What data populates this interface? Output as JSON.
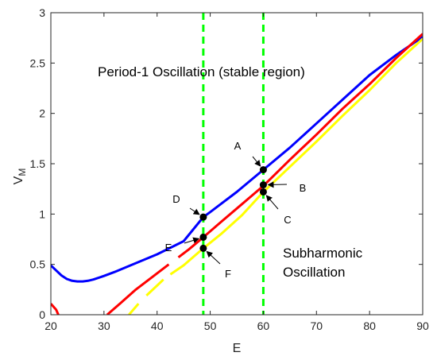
{
  "colors": {
    "blue": "#0000ff",
    "red": "#ff0000",
    "yellow": "#ffff00",
    "green": "#00ff00",
    "axis": "#262626"
  },
  "chart_data": {
    "type": "line",
    "title": "",
    "xlabel": "E",
    "ylabel": "V",
    "ylabel_sub": "M",
    "xlim": [
      20,
      90
    ],
    "ylim": [
      0,
      3
    ],
    "x_ticks": [
      "20",
      "30",
      "40",
      "50",
      "60",
      "70",
      "80",
      "90"
    ],
    "y_ticks": [
      "0",
      "0.5",
      "1",
      "1.5",
      "2",
      "2.5",
      "3"
    ],
    "grid": false,
    "series": [
      {
        "color": "blue",
        "style": "solid",
        "points": [
          [
            20,
            0.49
          ],
          [
            21,
            0.44
          ],
          [
            22,
            0.39
          ],
          [
            23,
            0.355
          ],
          [
            24,
            0.337
          ],
          [
            25,
            0.331
          ],
          [
            26,
            0.331
          ],
          [
            27,
            0.337
          ],
          [
            28,
            0.35
          ],
          [
            30,
            0.385
          ],
          [
            32,
            0.425
          ],
          [
            35,
            0.49
          ],
          [
            40,
            0.6
          ],
          [
            45,
            0.73
          ],
          [
            48.7,
            0.97
          ],
          [
            50,
            1.02
          ],
          [
            55,
            1.22
          ],
          [
            60,
            1.44
          ],
          [
            65,
            1.66
          ],
          [
            70,
            1.9
          ],
          [
            75,
            2.14
          ],
          [
            80,
            2.38
          ],
          [
            85,
            2.58
          ],
          [
            90,
            2.76
          ]
        ]
      },
      {
        "color": "red",
        "style": "segments",
        "segments": [
          [
            [
              20,
              0.11
            ],
            [
              21,
              0.05
            ],
            [
              21.4,
              0.0
            ]
          ],
          [
            [
              30.6,
              0.0
            ],
            [
              33,
              0.11
            ],
            [
              36,
              0.25
            ],
            [
              39,
              0.37
            ],
            [
              42.2,
              0.5
            ]
          ],
          [
            [
              44,
              0.57
            ],
            [
              46,
              0.65
            ],
            [
              48.7,
              0.77
            ],
            [
              52,
              0.92
            ],
            [
              56,
              1.1
            ],
            [
              60,
              1.28
            ],
            [
              65,
              1.54
            ],
            [
              70,
              1.79
            ],
            [
              75,
              2.05
            ],
            [
              80,
              2.29
            ],
            [
              85,
              2.55
            ],
            [
              90,
              2.79
            ]
          ]
        ]
      },
      {
        "color": "yellow",
        "style": "segments",
        "segments": [
          [
            [
              34.7,
              0.0
            ],
            [
              36.5,
              0.11
            ]
          ],
          [
            [
              38,
              0.19
            ],
            [
              40.2,
              0.3
            ],
            [
              41.2,
              0.35
            ]
          ],
          [
            [
              42.5,
              0.4
            ],
            [
              45,
              0.49
            ],
            [
              48.7,
              0.66
            ],
            [
              52,
              0.8
            ],
            [
              56,
              0.99
            ],
            [
              60,
              1.22
            ],
            [
              65,
              1.47
            ],
            [
              70,
              1.72
            ],
            [
              75,
              1.98
            ],
            [
              80,
              2.23
            ],
            [
              85,
              2.5
            ],
            [
              90,
              2.74
            ]
          ]
        ]
      }
    ],
    "vertical_lines": [
      {
        "x": 48.7,
        "color": "green",
        "style": "dashed"
      },
      {
        "x": 60,
        "color": "green",
        "style": "dashed"
      }
    ],
    "labeled_points": [
      {
        "label": "A",
        "x": 60,
        "y": 1.44
      },
      {
        "label": "B",
        "x": 60,
        "y": 1.29
      },
      {
        "label": "C",
        "x": 60,
        "y": 1.22
      },
      {
        "label": "D",
        "x": 48.7,
        "y": 0.97
      },
      {
        "label": "E",
        "x": 48.7,
        "y": 0.77
      },
      {
        "label": "F",
        "x": 48.7,
        "y": 0.66
      }
    ],
    "annotations": [
      "Period-1 Oscillation (stable region)",
      "Subharmonic",
      "Oscillation"
    ]
  }
}
